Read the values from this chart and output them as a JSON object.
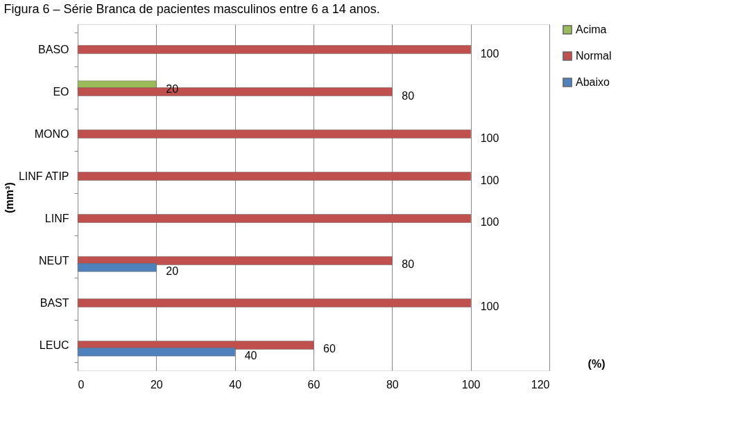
{
  "chart_data": {
    "type": "bar",
    "orientation": "horizontal",
    "title": "Figura 6 – Série Branca de pacientes masculinos entre 6 a 14 anos.",
    "xlabel": "(%)",
    "ylabel": "(mm³)",
    "categories": [
      "BASO",
      "EO",
      "MONO",
      "LINF ATIP",
      "LINF",
      "NEUT",
      "BAST",
      "LEUC"
    ],
    "series": [
      {
        "name": "Acima",
        "color": "#9bbb59",
        "values": [
          null,
          20,
          null,
          null,
          null,
          null,
          null,
          null
        ]
      },
      {
        "name": "Normal",
        "color": "#c0504d",
        "values": [
          100,
          80,
          100,
          100,
          100,
          80,
          100,
          60
        ]
      },
      {
        "name": "Abaixo",
        "color": "#4f81bd",
        "values": [
          null,
          null,
          null,
          null,
          null,
          20,
          null,
          40
        ]
      }
    ],
    "xlim": [
      0,
      120
    ],
    "xticks": [
      0,
      20,
      40,
      60,
      80,
      100,
      120
    ],
    "grid": "x",
    "legend": "right",
    "data_labels": true
  }
}
